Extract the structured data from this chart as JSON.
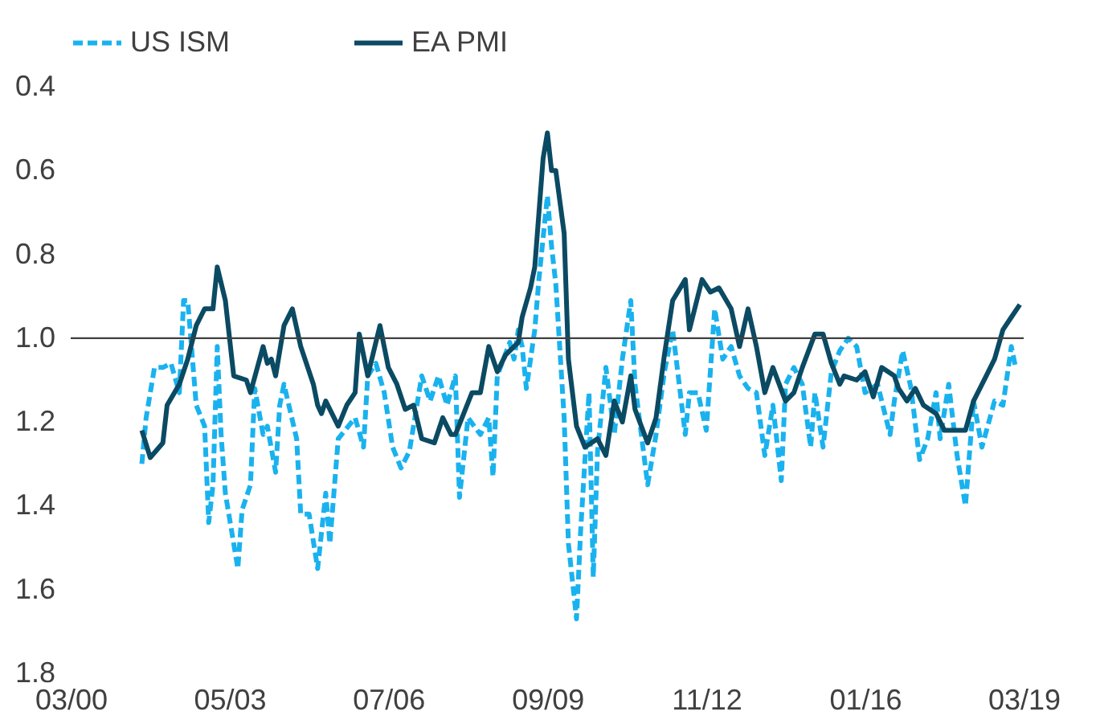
{
  "chart_data": {
    "type": "line",
    "xlim": [
      "2000-03",
      "2019-03"
    ],
    "xticks": [
      {
        "value": "2000-03",
        "label": "03/00"
      },
      {
        "value": "2003-05",
        "label": "05/03"
      },
      {
        "value": "2006-07",
        "label": "07/06"
      },
      {
        "value": "2009-09",
        "label": "09/09"
      },
      {
        "value": "2012-11",
        "label": "11/12"
      },
      {
        "value": "2016-01",
        "label": "01/16"
      },
      {
        "value": "2019-03",
        "label": "03/19"
      }
    ],
    "ylim": [
      1.8,
      0.4
    ],
    "yticks": [
      0.4,
      0.6,
      0.8,
      {
        "value": 1,
        "label": "1.0"
      },
      1.2,
      1.4,
      1.6,
      1.8
    ],
    "grid": false,
    "legend": "top",
    "ref_lines": [
      {
        "axis": "y",
        "value": 1,
        "color": "#404040"
      }
    ],
    "series": [
      {
        "name": "US ISM",
        "color": "#1ab2ee",
        "line_style": "dashed",
        "x": [
          "2001-08",
          "2001-09",
          "2001-11",
          "2002-01",
          "2002-03",
          "2002-05",
          "2002-06",
          "2002-07",
          "2002-09",
          "2002-11",
          "2002-12",
          "2003-01",
          "2003-02",
          "2003-03",
          "2003-04",
          "2003-07",
          "2003-08",
          "2003-10",
          "2003-11",
          "2004-01",
          "2004-02",
          "2004-04",
          "2004-05",
          "2004-06",
          "2004-09",
          "2004-10",
          "2004-12",
          "2005-02",
          "2005-04",
          "2005-05",
          "2005-07",
          "2005-11",
          "2006-01",
          "2006-02",
          "2006-04",
          "2006-06",
          "2006-08",
          "2006-10",
          "2006-12",
          "2007-03",
          "2007-05",
          "2007-07",
          "2007-09",
          "2007-11",
          "2007-12",
          "2008-02",
          "2008-05",
          "2008-07",
          "2008-08",
          "2008-09",
          "2008-12",
          "2009-01",
          "2009-02",
          "2009-03",
          "2009-04",
          "2009-06",
          "2009-07",
          "2009-09",
          "2009-10",
          "2009-11",
          "2010-01",
          "2010-02",
          "2010-04",
          "2010-05",
          "2010-07",
          "2010-08",
          "2010-09",
          "2010-11",
          "2011-01",
          "2011-03",
          "2011-05",
          "2011-06",
          "2011-09",
          "2011-11",
          "2012-01",
          "2012-03",
          "2012-06",
          "2012-07",
          "2012-09",
          "2012-11",
          "2013-01",
          "2013-03",
          "2013-05",
          "2013-07",
          "2013-09",
          "2013-11",
          "2014-01",
          "2014-03",
          "2014-05",
          "2014-06",
          "2014-08",
          "2014-10",
          "2014-12",
          "2015-01",
          "2015-03",
          "2015-05",
          "2015-07",
          "2015-09",
          "2015-11",
          "2016-01",
          "2016-04",
          "2016-07",
          "2016-08",
          "2016-10",
          "2016-12",
          "2017-02",
          "2017-04",
          "2017-06",
          "2017-07",
          "2017-09",
          "2017-11",
          "2018-01",
          "2018-03",
          "2018-05",
          "2018-08",
          "2018-10",
          "2018-12",
          "2019-01"
        ],
        "values": [
          1.3,
          1.19,
          1.07,
          1.07,
          1.06,
          1.13,
          0.91,
          0.91,
          1.16,
          1.21,
          1.44,
          1.35,
          1.02,
          1.23,
          1.37,
          1.55,
          1.41,
          1.35,
          1.12,
          1.23,
          1.21,
          1.32,
          1.16,
          1.11,
          1.24,
          1.42,
          1.42,
          1.55,
          1.37,
          1.49,
          1.24,
          1.19,
          1.26,
          1.09,
          1.06,
          1.13,
          1.26,
          1.31,
          1.27,
          1.09,
          1.15,
          1.09,
          1.16,
          1.09,
          1.38,
          1.19,
          1.23,
          1.19,
          1.33,
          1.09,
          1.01,
          1.05,
          0.98,
          1.02,
          1.12,
          0.98,
          0.86,
          0.66,
          0.78,
          0.87,
          1.19,
          1.49,
          1.67,
          1.46,
          1.13,
          1.57,
          1.27,
          1.07,
          1.23,
          1.05,
          0.91,
          1.11,
          1.35,
          1.23,
          1.08,
          0.98,
          1.23,
          1.13,
          1.13,
          1.22,
          0.93,
          1.05,
          1.02,
          1.09,
          1.12,
          1.13,
          1.28,
          1.16,
          1.34,
          1.11,
          1.07,
          1.11,
          1.26,
          1.13,
          1.26,
          1.08,
          1.03,
          1.0,
          1.02,
          1.13,
          1.11,
          1.23,
          1.15,
          1.03,
          1.12,
          1.29,
          1.24,
          1.13,
          1.24,
          1.11,
          1.28,
          1.4,
          1.15,
          1.26,
          1.15,
          1.16,
          1.02,
          1.07
        ]
      },
      {
        "name": "EA PMI",
        "color": "#0b4a63",
        "line_style": "solid",
        "x": [
          "2001-08",
          "2001-10",
          "2002-01",
          "2002-02",
          "2002-05",
          "2002-07",
          "2002-09",
          "2002-11",
          "2003-01",
          "2003-02",
          "2003-04",
          "2003-06",
          "2003-09",
          "2003-10",
          "2004-01",
          "2004-02",
          "2004-03",
          "2004-04",
          "2004-06",
          "2004-08",
          "2004-10",
          "2005-01",
          "2005-02",
          "2005-03",
          "2005-04",
          "2005-07",
          "2005-09",
          "2005-11",
          "2005-12",
          "2006-02",
          "2006-04",
          "2006-05",
          "2006-07",
          "2006-09",
          "2006-11",
          "2007-01",
          "2007-03",
          "2007-06",
          "2007-08",
          "2007-10",
          "2007-11",
          "2008-03",
          "2008-05",
          "2008-07",
          "2008-09",
          "2008-11",
          "2009-02",
          "2009-03",
          "2009-05",
          "2009-06",
          "2009-08",
          "2009-09",
          "2009-10",
          "2009-11",
          "2010-01",
          "2010-02",
          "2010-04",
          "2010-06",
          "2010-09",
          "2010-11",
          "2011-01",
          "2011-03",
          "2011-05",
          "2011-06",
          "2011-09",
          "2011-11",
          "2012-01",
          "2012-03",
          "2012-06",
          "2012-07",
          "2012-10",
          "2012-12",
          "2013-02",
          "2013-05",
          "2013-07",
          "2013-09",
          "2013-11",
          "2014-01",
          "2014-03",
          "2014-06",
          "2014-08",
          "2014-10",
          "2015-01",
          "2015-03",
          "2015-05",
          "2015-07",
          "2015-08",
          "2015-11",
          "2016-01",
          "2016-03",
          "2016-05",
          "2016-08",
          "2016-09",
          "2016-11",
          "2017-01",
          "2017-03",
          "2017-06",
          "2017-08",
          "2017-10",
          "2018-01",
          "2018-03",
          "2018-06",
          "2018-08",
          "2018-10",
          "2018-12",
          "2019-02"
        ],
        "values": [
          1.22,
          1.285,
          1.25,
          1.16,
          1.11,
          1.05,
          0.97,
          0.93,
          0.93,
          0.83,
          0.91,
          1.09,
          1.1,
          1.13,
          1.02,
          1.06,
          1.05,
          1.09,
          0.97,
          0.93,
          1.02,
          1.11,
          1.16,
          1.18,
          1.15,
          1.21,
          1.16,
          1.13,
          0.99,
          1.09,
          1.01,
          0.97,
          1.07,
          1.11,
          1.17,
          1.16,
          1.24,
          1.25,
          1.19,
          1.23,
          1.23,
          1.13,
          1.13,
          1.02,
          1.08,
          1.04,
          1.01,
          0.95,
          0.88,
          0.83,
          0.57,
          0.51,
          0.6,
          0.6,
          0.75,
          1.05,
          1.21,
          1.26,
          1.24,
          1.28,
          1.15,
          1.2,
          1.09,
          1.17,
          1.25,
          1.19,
          1.04,
          0.91,
          0.86,
          0.98,
          0.86,
          0.89,
          0.88,
          0.93,
          1.02,
          0.93,
          1.02,
          1.13,
          1.07,
          1.15,
          1.13,
          1.07,
          0.99,
          0.99,
          1.06,
          1.11,
          1.09,
          1.1,
          1.08,
          1.14,
          1.07,
          1.09,
          1.12,
          1.15,
          1.12,
          1.16,
          1.18,
          1.22,
          1.22,
          1.22,
          1.15,
          1.09,
          1.05,
          0.98,
          0.95,
          0.92
        ]
      }
    ]
  }
}
